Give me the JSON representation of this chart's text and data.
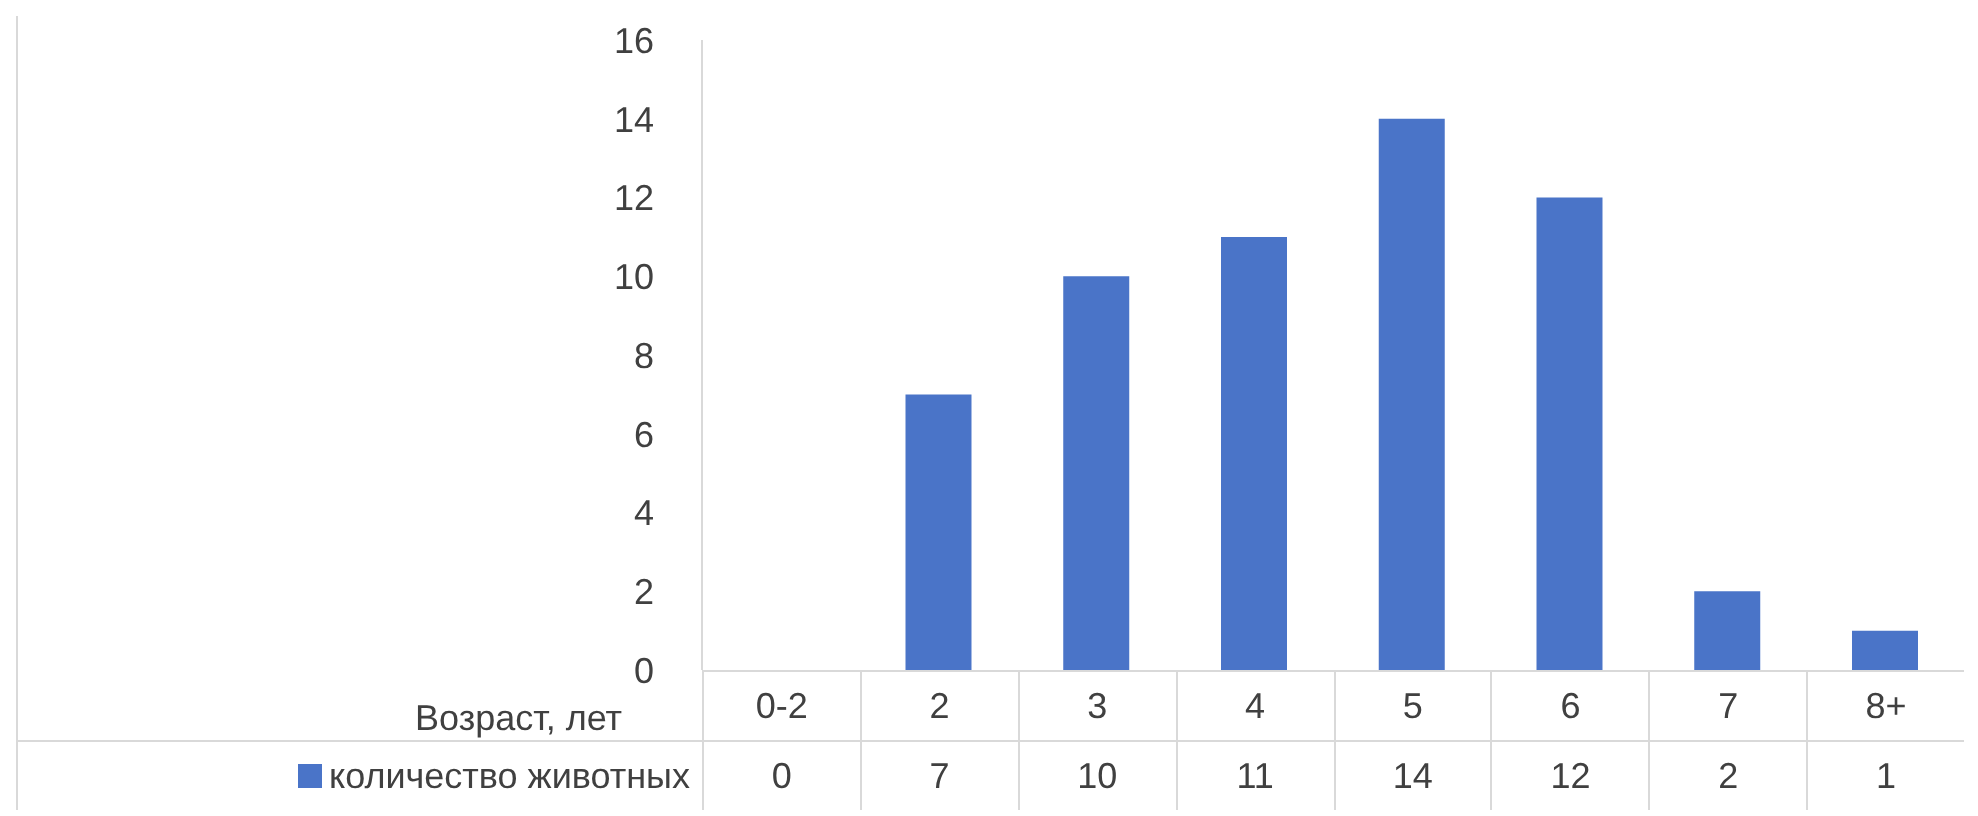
{
  "chart_data": {
    "type": "bar",
    "xlabel": "Возраст, лет",
    "categories": [
      "0-2",
      "2",
      "3",
      "4",
      "5",
      "6",
      "7",
      "8+"
    ],
    "series": [
      {
        "name": "количество животных",
        "color": "#4a74c8",
        "values": [
          0,
          7,
          10,
          11,
          14,
          12,
          2,
          1
        ]
      }
    ],
    "ylim": [
      0,
      16
    ],
    "yticks": [
      0,
      2,
      4,
      6,
      8,
      10,
      12,
      14,
      16
    ],
    "grid": false,
    "legend": "bottom",
    "data_labels": true
  }
}
